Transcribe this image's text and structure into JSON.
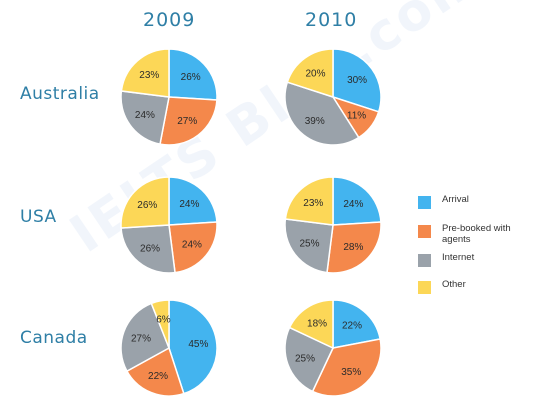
{
  "chart_data": {
    "type": "pie",
    "years": [
      "2009",
      "2010"
    ],
    "countries": [
      "Australia",
      "USA",
      "Canada"
    ],
    "categories": [
      "Arrival",
      "Pre-booked with agents",
      "Internet",
      "Other"
    ],
    "colors": [
      "#43b4ef",
      "#f4884b",
      "#9aa2aa",
      "#fcd757"
    ],
    "legend_position": "right",
    "charts": [
      {
        "country": "Australia",
        "year": "2009",
        "values": [
          26,
          27,
          24,
          23
        ]
      },
      {
        "country": "Australia",
        "year": "2010",
        "values": [
          30,
          11,
          39,
          20
        ]
      },
      {
        "country": "USA",
        "year": "2009",
        "values": [
          24,
          24,
          26,
          26
        ]
      },
      {
        "country": "USA",
        "year": "2010",
        "values": [
          24,
          28,
          25,
          23
        ]
      },
      {
        "country": "Canada",
        "year": "2009",
        "values": [
          45,
          22,
          27,
          6
        ]
      },
      {
        "country": "Canada",
        "year": "2010",
        "values": [
          22,
          35,
          25,
          18
        ]
      }
    ]
  },
  "watermark": "IELTS Blog.com"
}
